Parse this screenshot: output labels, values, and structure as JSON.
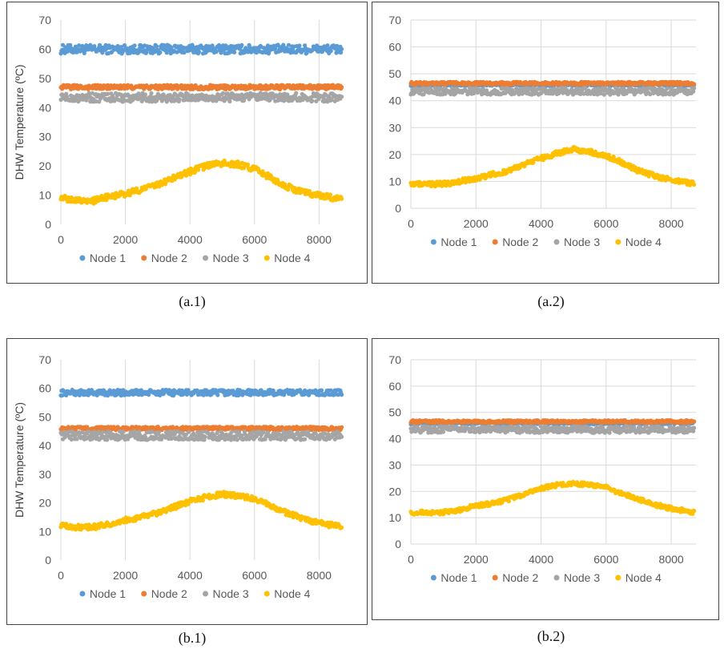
{
  "chart_data": [
    {
      "type": "scatter",
      "caption": "(a.1)",
      "ylabel": "DHW Temperature (ºC)",
      "xlim": [
        0,
        8760
      ],
      "ylim": [
        0,
        70
      ],
      "xticks": [
        0,
        2000,
        4000,
        6000,
        8000
      ],
      "yticks": [
        0,
        10,
        20,
        30,
        40,
        50,
        60,
        70
      ],
      "grid": "vertical",
      "legend": "bottom",
      "series": [
        {
          "name": "Node 1",
          "color": "#5B9BD5",
          "x": [
            0,
            1000,
            2000,
            3000,
            4000,
            5000,
            6000,
            7000,
            8000,
            8700
          ],
          "y": [
            60,
            60,
            60,
            60,
            60,
            60,
            60,
            60,
            60,
            60
          ],
          "spread": 3
        },
        {
          "name": "Node 2",
          "color": "#ED7D31",
          "x": [
            0,
            1000,
            2000,
            3000,
            4000,
            5000,
            6000,
            7000,
            8000,
            8700
          ],
          "y": [
            47,
            47,
            47,
            47,
            47,
            47,
            47,
            47,
            47,
            47
          ],
          "spread": 1.5
        },
        {
          "name": "Node 3",
          "color": "#A5A5A5",
          "x": [
            0,
            1000,
            2000,
            3000,
            4000,
            5000,
            6000,
            7000,
            8000,
            8700
          ],
          "y": [
            43.5,
            43.5,
            43.5,
            43.5,
            43.5,
            43.5,
            43.5,
            43.5,
            43.5,
            43.5
          ],
          "spread": 3
        },
        {
          "name": "Node 4",
          "color": "#FFC000",
          "x": [
            0,
            500,
            1000,
            1500,
            2000,
            2500,
            3000,
            3500,
            4000,
            4500,
            5000,
            5500,
            6000,
            6500,
            7000,
            7500,
            8000,
            8500,
            8700
          ],
          "y": [
            9,
            8.5,
            8,
            9.5,
            10.5,
            12,
            13.5,
            16,
            18,
            20,
            21,
            20.5,
            19,
            16,
            13,
            11,
            10,
            9,
            8.5
          ],
          "spread": 2
        }
      ]
    },
    {
      "type": "scatter",
      "caption": "(a.2)",
      "ylabel": "",
      "xlim": [
        0,
        8760
      ],
      "ylim": [
        0,
        70
      ],
      "xticks": [
        0,
        2000,
        4000,
        6000,
        8000
      ],
      "yticks": [
        0,
        10,
        20,
        30,
        40,
        50,
        60,
        70
      ],
      "grid": "both",
      "legend": "bottom",
      "series": [
        {
          "name": "Node 1",
          "color": "#5B9BD5",
          "x": [
            0,
            1000,
            2000,
            3000,
            4000,
            5000,
            6000,
            7000,
            8000,
            8700
          ],
          "y": [
            46,
            46,
            46,
            46,
            46,
            46,
            46,
            46,
            46,
            46
          ],
          "spread": 1
        },
        {
          "name": "Node 2",
          "color": "#ED7D31",
          "x": [
            0,
            1000,
            2000,
            3000,
            4000,
            5000,
            6000,
            7000,
            8000,
            8700
          ],
          "y": [
            46.5,
            46.5,
            46.5,
            46.5,
            46.5,
            46.5,
            46.5,
            46.5,
            46.5,
            46.5
          ],
          "spread": 1
        },
        {
          "name": "Node 3",
          "color": "#A5A5A5",
          "x": [
            0,
            1000,
            2000,
            3000,
            4000,
            5000,
            6000,
            7000,
            8000,
            8700
          ],
          "y": [
            43.5,
            43.5,
            43.5,
            43.5,
            43.5,
            43.5,
            43.5,
            43.5,
            43.5,
            43.5
          ],
          "spread": 2.5
        },
        {
          "name": "Node 4",
          "color": "#FFC000",
          "x": [
            0,
            500,
            1000,
            1500,
            2000,
            2500,
            3000,
            3500,
            4000,
            4500,
            5000,
            5500,
            6000,
            6500,
            7000,
            7500,
            8000,
            8500,
            8700
          ],
          "y": [
            9,
            9,
            9,
            10,
            11,
            12.5,
            14,
            16.5,
            18.5,
            20.5,
            22,
            21,
            19.5,
            17,
            14,
            12,
            10.5,
            9.5,
            9
          ],
          "spread": 1.8
        }
      ]
    },
    {
      "type": "scatter",
      "caption": "(b.1)",
      "ylabel": "DHW Temperature (ºC)",
      "xlim": [
        0,
        8760
      ],
      "ylim": [
        0,
        70
      ],
      "xticks": [
        0,
        2000,
        4000,
        6000,
        8000
      ],
      "yticks": [
        0,
        10,
        20,
        30,
        40,
        50,
        60,
        70
      ],
      "grid": "vertical",
      "legend": "bottom",
      "series": [
        {
          "name": "Node 1",
          "color": "#5B9BD5",
          "x": [
            0,
            1000,
            2000,
            3000,
            4000,
            5000,
            6000,
            7000,
            8000,
            8700
          ],
          "y": [
            58.5,
            58.5,
            58.5,
            58.5,
            58.5,
            58.5,
            58.5,
            58.5,
            58.5,
            58.5
          ],
          "spread": 2
        },
        {
          "name": "Node 2",
          "color": "#ED7D31",
          "x": [
            0,
            1000,
            2000,
            3000,
            4000,
            5000,
            6000,
            7000,
            8000,
            8700
          ],
          "y": [
            46,
            46,
            46,
            46,
            46,
            46,
            46,
            46,
            46,
            46
          ],
          "spread": 1.2
        },
        {
          "name": "Node 3",
          "color": "#A5A5A5",
          "x": [
            0,
            1000,
            2000,
            3000,
            4000,
            5000,
            6000,
            7000,
            8000,
            8700
          ],
          "y": [
            43.5,
            43.5,
            43.5,
            43.5,
            43.5,
            43.5,
            43.5,
            43.5,
            43.5,
            43.5
          ],
          "spread": 3
        },
        {
          "name": "Node 4",
          "color": "#FFC000",
          "x": [
            0,
            500,
            1000,
            1500,
            2000,
            2500,
            3000,
            3500,
            4000,
            4500,
            5000,
            5500,
            6000,
            6500,
            7000,
            7500,
            8000,
            8500,
            8700
          ],
          "y": [
            12,
            11.5,
            11.5,
            12.5,
            14,
            15,
            16.5,
            18.5,
            20.5,
            22,
            23,
            22.5,
            21.5,
            19,
            16.5,
            14.5,
            13,
            12,
            12
          ],
          "spread": 1.8
        }
      ]
    },
    {
      "type": "scatter",
      "caption": "(b.2)",
      "ylabel": "",
      "xlim": [
        0,
        8760
      ],
      "ylim": [
        0,
        70
      ],
      "xticks": [
        0,
        2000,
        4000,
        6000,
        8000
      ],
      "yticks": [
        0,
        10,
        20,
        30,
        40,
        50,
        60,
        70
      ],
      "grid": "both",
      "legend": "bottom",
      "series": [
        {
          "name": "Node 1",
          "color": "#5B9BD5",
          "x": [
            0,
            1000,
            2000,
            3000,
            4000,
            5000,
            6000,
            7000,
            8000,
            8700
          ],
          "y": [
            46,
            46,
            46,
            46,
            46,
            46,
            46,
            46,
            46,
            46
          ],
          "spread": 1
        },
        {
          "name": "Node 2",
          "color": "#ED7D31",
          "x": [
            0,
            1000,
            2000,
            3000,
            4000,
            5000,
            6000,
            7000,
            8000,
            8700
          ],
          "y": [
            46.5,
            46.5,
            46.5,
            46.5,
            46.5,
            46.5,
            46.5,
            46.5,
            46.5,
            46.5
          ],
          "spread": 1
        },
        {
          "name": "Node 3",
          "color": "#A5A5A5",
          "x": [
            0,
            1000,
            2000,
            3000,
            4000,
            5000,
            6000,
            7000,
            8000,
            8700
          ],
          "y": [
            43.5,
            43.5,
            43.5,
            43.5,
            43.5,
            43.5,
            43.5,
            43.5,
            43.5,
            43.5
          ],
          "spread": 2.5
        },
        {
          "name": "Node 4",
          "color": "#FFC000",
          "x": [
            0,
            500,
            1000,
            1500,
            2000,
            2500,
            3000,
            3500,
            4000,
            4500,
            5000,
            5500,
            6000,
            6500,
            7000,
            7500,
            8000,
            8500,
            8700
          ],
          "y": [
            12,
            12,
            12,
            13,
            14.5,
            15.5,
            17,
            19,
            21,
            22.5,
            23,
            22.5,
            21.5,
            19,
            17,
            15,
            13.5,
            12.5,
            12
          ],
          "spread": 1.6
        }
      ]
    }
  ]
}
